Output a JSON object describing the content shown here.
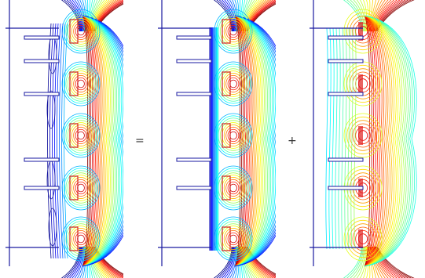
{
  "operators": {
    "equals": "=",
    "plus": "+"
  },
  "panels": [
    {
      "name": "total-field",
      "field": "total"
    },
    {
      "name": "primary-field",
      "field": "primary"
    },
    {
      "name": "secondary-field",
      "field": "secondary"
    }
  ],
  "colors": {
    "structure": "#1a1aa0",
    "colormap": "jet"
  }
}
